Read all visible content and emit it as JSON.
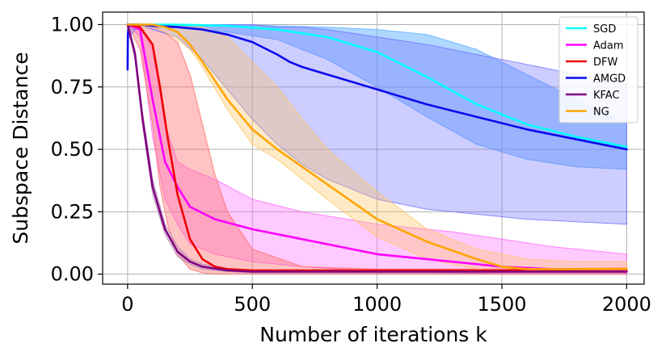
{
  "chart_data": {
    "type": "line",
    "title": "",
    "xlabel": "Number of iterations k",
    "ylabel": "Subspace Distance",
    "xlim": [
      -100,
      2070
    ],
    "ylim": [
      -0.04,
      1.05
    ],
    "xticks": [
      0,
      500,
      1000,
      1500,
      2000
    ],
    "xtick_labels": [
      "0",
      "500",
      "1000",
      "1500",
      "2000"
    ],
    "yticks": [
      0.0,
      0.25,
      0.5,
      0.75,
      1.0
    ],
    "ytick_labels": [
      "0.00",
      "0.25",
      "0.50",
      "0.75",
      "1.00"
    ],
    "grid": true,
    "legend_position": "top-right",
    "series": [
      {
        "name": "SGD",
        "color": "#00ffff",
        "band_color": "#5fb0ff",
        "band_alpha": 0.5,
        "x": [
          0,
          200,
          400,
          600,
          800,
          1000,
          1200,
          1400,
          1600,
          1800,
          2000
        ],
        "mean": [
          1.0,
          1.0,
          0.995,
          0.98,
          0.95,
          0.89,
          0.79,
          0.68,
          0.6,
          0.55,
          0.51
        ],
        "upper": [
          1.0,
          1.0,
          1.0,
          0.995,
          0.99,
          0.98,
          0.96,
          0.9,
          0.8,
          0.7,
          0.6
        ],
        "lower": [
          1.0,
          0.99,
          0.97,
          0.94,
          0.86,
          0.75,
          0.63,
          0.52,
          0.46,
          0.43,
          0.42
        ]
      },
      {
        "name": "Adam",
        "color": "#ff00ff",
        "band_color": "#ff66ff",
        "band_alpha": 0.35,
        "x": [
          0,
          50,
          100,
          150,
          200,
          250,
          350,
          500,
          700,
          1000,
          1300,
          1500,
          1700,
          2000
        ],
        "mean": [
          1.0,
          0.98,
          0.7,
          0.45,
          0.35,
          0.27,
          0.22,
          0.18,
          0.14,
          0.08,
          0.05,
          0.03,
          0.02,
          0.015
        ],
        "upper": [
          1.0,
          1.0,
          0.9,
          0.6,
          0.45,
          0.42,
          0.38,
          0.3,
          0.25,
          0.2,
          0.17,
          0.14,
          0.11,
          0.08
        ],
        "lower": [
          1.0,
          0.95,
          0.55,
          0.3,
          0.2,
          0.12,
          0.08,
          0.05,
          0.03,
          0.01,
          0.005,
          0.0,
          0.0,
          0.0
        ]
      },
      {
        "name": "DFW",
        "color": "#ee0000",
        "band_color": "#ff6a6a",
        "band_alpha": 0.4,
        "x": [
          0,
          50,
          100,
          130,
          160,
          200,
          250,
          300,
          350,
          400,
          500,
          700,
          1000,
          1500,
          2000
        ],
        "mean": [
          1.0,
          0.99,
          0.92,
          0.75,
          0.55,
          0.32,
          0.14,
          0.06,
          0.03,
          0.02,
          0.015,
          0.015,
          0.015,
          0.015,
          0.02
        ],
        "upper": [
          1.0,
          1.0,
          1.0,
          0.98,
          0.96,
          0.93,
          0.8,
          0.6,
          0.4,
          0.25,
          0.1,
          0.03,
          0.02,
          0.02,
          0.025
        ],
        "lower": [
          1.0,
          0.9,
          0.6,
          0.35,
          0.2,
          0.08,
          0.02,
          0.005,
          0.0,
          0.0,
          0.0,
          0.0,
          0.0,
          0.0,
          0.0
        ]
      },
      {
        "name": "AMGD",
        "color": "#0a0aee",
        "band_color": "#7070ff",
        "band_alpha": 0.35,
        "x": [
          0,
          1,
          5,
          50,
          100,
          200,
          300,
          400,
          500,
          600,
          650,
          700,
          800,
          1000,
          1200,
          1400,
          1600,
          1800,
          2000
        ],
        "mean": [
          0.82,
          0.96,
          1.0,
          1.0,
          0.995,
          0.99,
          0.98,
          0.96,
          0.93,
          0.88,
          0.85,
          0.83,
          0.8,
          0.74,
          0.68,
          0.63,
          0.58,
          0.54,
          0.5
        ],
        "upper": [
          1.0,
          1.0,
          1.0,
          1.0,
          1.0,
          1.0,
          1.0,
          1.0,
          1.0,
          0.99,
          0.99,
          0.99,
          0.98,
          0.95,
          0.92,
          0.88,
          0.84,
          0.8,
          0.76
        ],
        "lower": [
          0.82,
          0.9,
          0.95,
          1.0,
          0.98,
          0.95,
          0.86,
          0.74,
          0.62,
          0.52,
          0.48,
          0.44,
          0.38,
          0.3,
          0.26,
          0.24,
          0.22,
          0.21,
          0.2
        ]
      },
      {
        "name": "KFAC",
        "color": "#800080",
        "band_color": "#b080b0",
        "band_alpha": 0.3,
        "x": [
          0,
          30,
          60,
          100,
          150,
          200,
          250,
          300,
          400,
          500,
          700,
          1000,
          1500,
          2000
        ],
        "mean": [
          1.0,
          0.88,
          0.62,
          0.35,
          0.18,
          0.09,
          0.05,
          0.03,
          0.015,
          0.01,
          0.01,
          0.01,
          0.01,
          0.01
        ],
        "upper": [
          1.0,
          0.9,
          0.65,
          0.38,
          0.2,
          0.11,
          0.06,
          0.04,
          0.02,
          0.015,
          0.012,
          0.012,
          0.012,
          0.012
        ],
        "lower": [
          1.0,
          0.86,
          0.6,
          0.32,
          0.16,
          0.07,
          0.04,
          0.02,
          0.01,
          0.005,
          0.005,
          0.005,
          0.005,
          0.005
        ]
      },
      {
        "name": "NG",
        "color": "#ffa500",
        "band_color": "#ffc460",
        "band_alpha": 0.35,
        "x": [
          0,
          100,
          150,
          200,
          250,
          300,
          400,
          500,
          600,
          700,
          800,
          1000,
          1200,
          1400,
          1500,
          1600,
          1800,
          2000
        ],
        "mean": [
          1.0,
          1.0,
          0.99,
          0.97,
          0.92,
          0.85,
          0.7,
          0.58,
          0.5,
          0.43,
          0.36,
          0.22,
          0.13,
          0.06,
          0.03,
          0.02,
          0.02,
          0.02
        ],
        "upper": [
          1.0,
          1.0,
          1.0,
          1.0,
          1.0,
          0.99,
          0.95,
          0.85,
          0.75,
          0.62,
          0.5,
          0.33,
          0.18,
          0.1,
          0.08,
          0.06,
          0.05,
          0.05
        ],
        "lower": [
          1.0,
          0.99,
          0.97,
          0.94,
          0.9,
          0.83,
          0.66,
          0.52,
          0.46,
          0.38,
          0.3,
          0.15,
          0.06,
          0.02,
          0.01,
          0.01,
          0.01,
          0.01
        ]
      }
    ]
  }
}
